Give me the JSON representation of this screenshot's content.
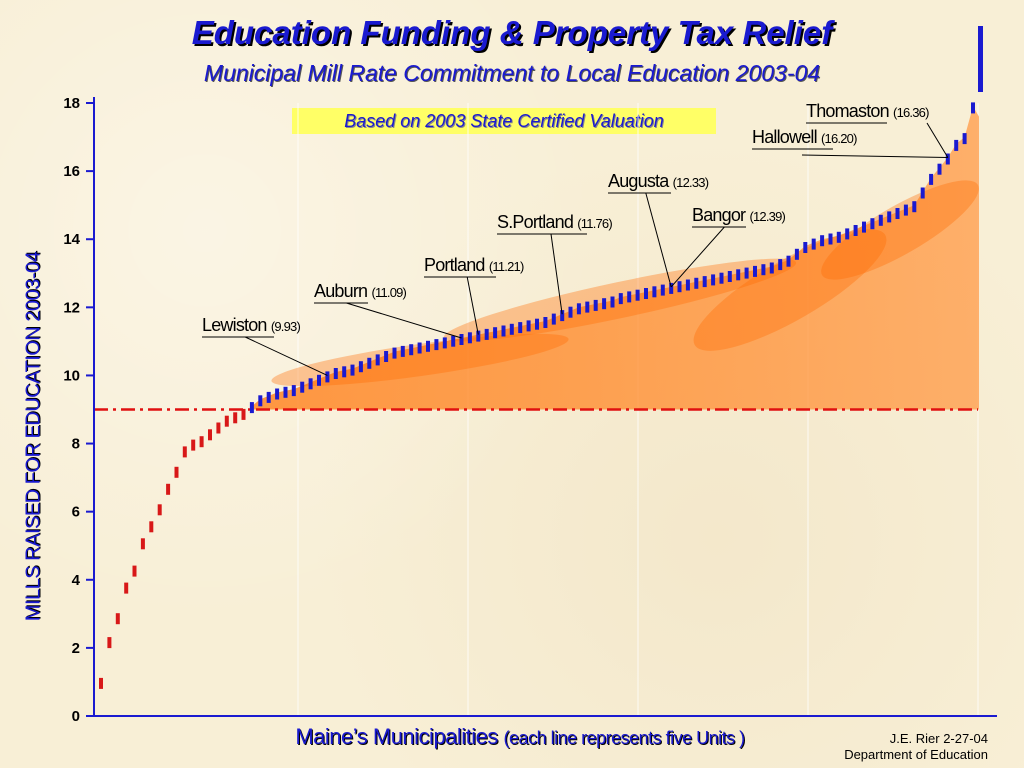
{
  "chart_data": {
    "type": "bar",
    "title": "Education Funding & Property Tax Relief",
    "subtitle": "Municipal Mill Rate Commitment to Local Education 2003-04",
    "ylabel": "MILLS RAISED FOR EDUCATION 2003-04",
    "xlabel": "Maine’s Municipalities",
    "xlabel_note": "(each line represents five Units )",
    "ylim": [
      0,
      18
    ],
    "yticks": [
      0,
      2,
      4,
      6,
      8,
      10,
      12,
      14,
      16,
      18
    ],
    "reference_line": 9.0,
    "values": [
      1.0,
      2.2,
      2.9,
      3.8,
      4.3,
      5.1,
      5.6,
      6.1,
      6.7,
      7.2,
      7.8,
      8.0,
      8.1,
      8.3,
      8.5,
      8.7,
      8.8,
      8.9,
      9.1,
      9.3,
      9.4,
      9.5,
      9.55,
      9.6,
      9.7,
      9.8,
      9.9,
      10.0,
      10.1,
      10.15,
      10.2,
      10.3,
      10.4,
      10.5,
      10.6,
      10.7,
      10.75,
      10.8,
      10.85,
      10.9,
      10.95,
      11.0,
      11.05,
      11.1,
      11.15,
      11.2,
      11.25,
      11.3,
      11.35,
      11.4,
      11.45,
      11.5,
      11.55,
      11.6,
      11.7,
      11.8,
      11.9,
      12.0,
      12.05,
      12.1,
      12.15,
      12.2,
      12.3,
      12.35,
      12.4,
      12.45,
      12.5,
      12.55,
      12.6,
      12.65,
      12.7,
      12.75,
      12.8,
      12.85,
      12.9,
      12.95,
      13.0,
      13.05,
      13.1,
      13.15,
      13.2,
      13.3,
      13.4,
      13.6,
      13.8,
      13.9,
      14.0,
      14.05,
      14.1,
      14.2,
      14.3,
      14.4,
      14.5,
      14.6,
      14.7,
      14.8,
      14.9,
      15.0,
      15.4,
      15.8,
      16.1,
      16.4,
      16.8,
      17.0,
      17.9
    ],
    "annotations": [
      {
        "name": "Lewiston",
        "value": "(9.93)",
        "index": 27
      },
      {
        "name": "Auburn",
        "value": "(11.09)",
        "index": 43
      },
      {
        "name": "Portland",
        "value": "(11.21)",
        "index": 45
      },
      {
        "name": "S.Portland",
        "value": "(11.76)",
        "index": 55
      },
      {
        "name": "Augusta",
        "value": "(12.33)",
        "index": 68
      },
      {
        "name": "Bangor",
        "value": "(12.39)",
        "index": 68
      },
      {
        "name": "Hallowell",
        "value": "(16.20)",
        "index": 101
      },
      {
        "name": "Thomaston",
        "value": "(16.36)",
        "index": 101
      }
    ]
  },
  "basis_label": "Based on 2003 State Certified Valuation",
  "credit_line1": "J.E. Rier  2-27-04",
  "credit_line2": "Department of Education",
  "colors": {
    "title": "#1a1ad0",
    "below_bars": "#d81818",
    "above_bars": "#1a1ad0",
    "area": "#ff8c2a",
    "reference": "#e01010",
    "highlight": "#ffff66"
  }
}
